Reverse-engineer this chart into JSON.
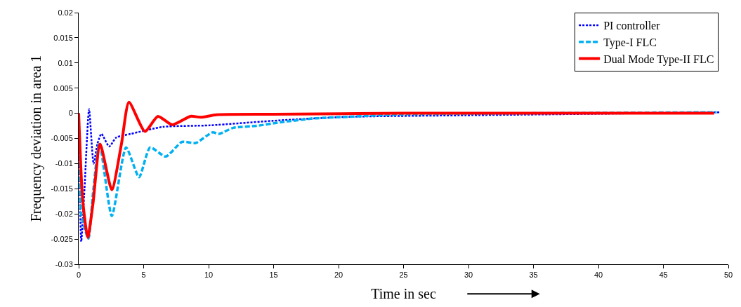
{
  "chart_data": {
    "type": "line",
    "xlabel": "Time in sec",
    "ylabel": "Frequency deviation in area 1",
    "xlim": [
      0,
      50
    ],
    "ylim": [
      -0.03,
      0.02
    ],
    "xticks": [
      0,
      5,
      10,
      15,
      20,
      25,
      30,
      35,
      40,
      45,
      50
    ],
    "yticks": [
      -0.03,
      -0.025,
      -0.02,
      -0.015,
      -0.01,
      -0.005,
      0,
      0.005,
      0.01,
      0.015,
      0.02
    ],
    "legend": "top right",
    "series": [
      {
        "name": "PI controller",
        "color": "#0000ff",
        "line_style": "dotted",
        "x": [
          0,
          0.1,
          0.2,
          0.45,
          0.8,
          1.15,
          1.45,
          1.75,
          2.35,
          2.9,
          4.0,
          6.5,
          10.1,
          15.5,
          20.8,
          29.8,
          40,
          49.3
        ],
        "values": [
          0,
          -0.018,
          -0.0255,
          -0.015,
          0.0008,
          -0.01,
          -0.006,
          -0.0041,
          -0.0066,
          -0.0048,
          -0.0041,
          -0.0027,
          -0.0024,
          -0.0014,
          -0.0007,
          -0.0004,
          -0.0001,
          0.0002
        ]
      },
      {
        "name": "Type-I FLC",
        "color": "#00b0f0",
        "line_style": "dashed",
        "x": [
          0,
          0.2,
          0.75,
          1.1,
          1.6,
          2.55,
          3.65,
          4.65,
          5.5,
          6.7,
          7.95,
          9.0,
          10.3,
          10.8,
          11.9,
          13.7,
          15.5,
          18.2,
          20.8,
          25,
          35,
          49.1
        ],
        "values": [
          0,
          -0.02,
          -0.0249,
          -0.016,
          -0.0059,
          -0.0204,
          -0.0068,
          -0.0127,
          -0.0068,
          -0.0086,
          -0.0057,
          -0.0059,
          -0.0038,
          -0.0041,
          -0.0029,
          -0.0025,
          -0.0018,
          -0.001,
          -0.0007,
          -0.0002,
          0,
          0.0002
        ]
      },
      {
        "name": "Dual Mode Type-II FLC",
        "color": "#ff0000",
        "line_style": "solid",
        "x": [
          0,
          0.3,
          0.7,
          1.1,
          1.65,
          2.55,
          3.3,
          3.87,
          5.1,
          6.1,
          7.2,
          8.6,
          9.4,
          10.6,
          15,
          25,
          48.9
        ],
        "values": [
          0,
          -0.017,
          -0.0247,
          -0.018,
          -0.0061,
          -0.0152,
          -0.006,
          0.0022,
          -0.0036,
          -0.0006,
          -0.0023,
          -0.0006,
          -0.0008,
          -0.0003,
          -0.0002,
          0,
          0
        ]
      }
    ]
  }
}
